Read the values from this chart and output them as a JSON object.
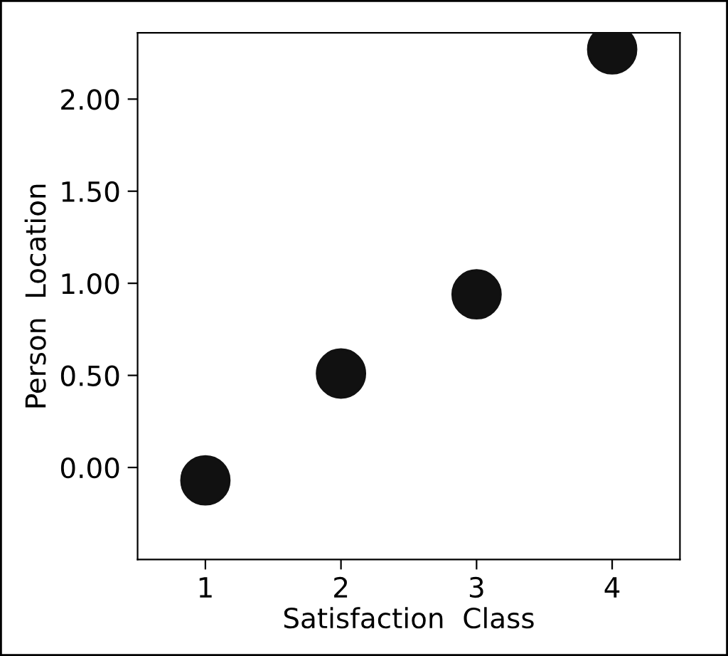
{
  "chart_data": {
    "type": "scatter",
    "xlabel": "Satisfaction  Class",
    "ylabel": "Person  Location",
    "x": [
      1,
      2,
      3,
      4
    ],
    "series": [
      {
        "color": "#111111",
        "values": [
          -0.07,
          0.51,
          0.94,
          2.27
        ]
      }
    ],
    "marker": "circle",
    "xlim": [
      0.5,
      4.5
    ],
    "xticks": [
      1,
      2,
      3,
      4
    ],
    "ylim": [
      -0.5,
      2.36
    ],
    "yticks": [
      {
        "value": 0,
        "label": "0.00"
      },
      {
        "value": 0.5,
        "label": "0.50"
      },
      {
        "value": 1,
        "label": "1.00"
      },
      {
        "value": 1.5,
        "label": "1.50"
      },
      {
        "value": 2,
        "label": "2.00"
      }
    ],
    "grid": false,
    "legend": false
  }
}
